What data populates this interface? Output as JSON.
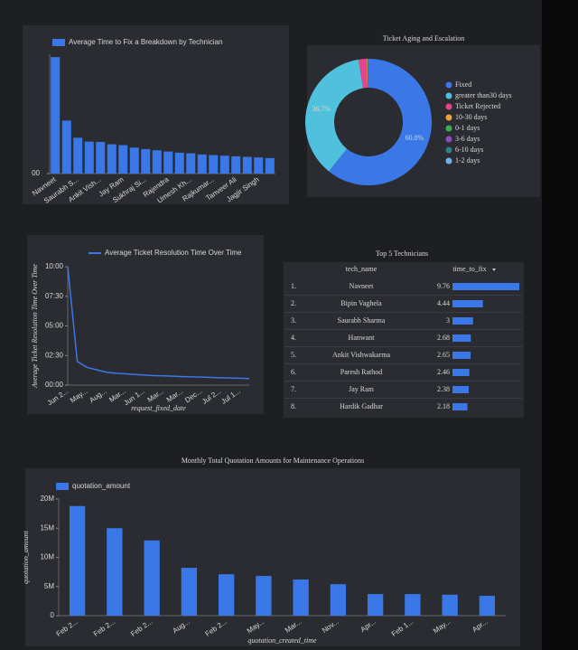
{
  "chart_data": [
    {
      "type": "bar",
      "legend": "top",
      "categories": [
        "Navneet",
        null,
        "Saurabh S...",
        null,
        "Ankit Vish...",
        null,
        "Jay Ram",
        null,
        "Sukhraj Si...",
        null,
        "Rajendra",
        null,
        "Umesh Kh...",
        null,
        "Rajkumar...",
        null,
        "Tanveer Ali",
        null,
        "Jagjir Singh",
        null
      ],
      "series": [
        {
          "name": "Average Time to Fix a Breakdown by Technician",
          "color": "#3b78e7",
          "values": [
            9.76,
            4.44,
            3,
            2.68,
            2.65,
            2.46,
            2.38,
            2.18,
            2.05,
            1.95,
            1.85,
            1.75,
            1.7,
            1.6,
            1.55,
            1.5,
            1.45,
            1.4,
            1.35,
            1.3
          ]
        }
      ],
      "ylim": [
        0,
        10
      ],
      "yticks": [
        {
          "value": 0,
          "label": "00"
        }
      ]
    },
    {
      "type": "pie",
      "title": "Ticket Aging and Escalation",
      "donut": true,
      "legend": "right",
      "categories": [
        "Fixed",
        "greater than30 days",
        "Ticket Rejected",
        "10-30 days",
        "0-1 days",
        "3-6 days",
        "6-10 days",
        "1-2 days"
      ],
      "values": [
        60.8,
        36.7,
        2.0,
        0.2,
        0.1,
        0.1,
        0.05,
        0.05
      ],
      "value_labels": [
        "60.8%",
        "36.7%",
        null,
        null,
        null,
        null,
        null,
        null
      ],
      "colors": [
        "#3b78e7",
        "#4fc1dc",
        "#e8438f",
        "#f2a33a",
        "#3cae52",
        "#8e4cc4",
        "#2e7f86",
        "#6fb2f0"
      ]
    },
    {
      "type": "line",
      "legend": "top",
      "categories": [
        "Jun 2...",
        null,
        "May...",
        null,
        "Aug...",
        null,
        "Mar...",
        null,
        "Jun 1...",
        null,
        "Mar...",
        null,
        "Mar...",
        null,
        "Dec...",
        null,
        "Jul 2...",
        null,
        "Jul 1...",
        null
      ],
      "series": [
        {
          "name": "Average Ticket Resolution Time Over Time",
          "color": "#3b78e7",
          "values": [
            10,
            2.0,
            1.5,
            1.3,
            1.1,
            1.0,
            0.95,
            0.9,
            0.85,
            0.8,
            0.78,
            0.75,
            0.72,
            0.7,
            0.68,
            0.65,
            0.62,
            0.6,
            0.58,
            0.55
          ]
        }
      ],
      "ylim": [
        0,
        10
      ],
      "yticks": [
        {
          "value": 0,
          "label": "00:00"
        },
        {
          "value": 2.5,
          "label": "02:30"
        },
        {
          "value": 5,
          "label": "05:00"
        },
        {
          "value": 7.5,
          "label": "07:30"
        },
        {
          "value": 10,
          "label": "10:00"
        }
      ],
      "y_label": "Average Ticket Resolution Time Over Time",
      "x_label": "request_fixed_date"
    },
    {
      "type": "bar",
      "title": "Monthly Total Quotation Amounts for Maintenance Operations",
      "legend": "top",
      "categories": [
        "Feb 2...",
        "Feb 2...",
        "Feb 2...",
        "Aug...",
        "Feb 2...",
        "May...",
        "Mar...",
        "Nov...",
        "Apr...",
        "Feb 1...",
        "May...",
        "Apr..."
      ],
      "series": [
        {
          "name": "quotation_amount",
          "color": "#3b78e7",
          "values": [
            18800000,
            15000000,
            12900000,
            8200000,
            7100000,
            6800000,
            6200000,
            5400000,
            3700000,
            3700000,
            3600000,
            3400000
          ]
        }
      ],
      "ylim": [
        0,
        20000000
      ],
      "yticks": [
        0,
        {
          "value": 5000000,
          "label": "5M"
        },
        {
          "value": 10000000,
          "label": "10M"
        },
        {
          "value": 15000000,
          "label": "15M"
        },
        {
          "value": 20000000,
          "label": "20M"
        }
      ],
      "y_label": "quotation_amount",
      "x_label": "quotation_created_time"
    }
  ],
  "table": {
    "title": "Top 5 Technicians",
    "columns": [
      "tech_name",
      "time_to_fix"
    ],
    "row_numbers": [
      "1.",
      "2.",
      "3.",
      "4.",
      "5.",
      "6.",
      "7.",
      "8."
    ],
    "rows": [
      [
        "Navneet",
        9.76
      ],
      [
        "Bipin Vaghela",
        4.44
      ],
      [
        "Saurabh Sharma",
        3
      ],
      [
        "Hanwant",
        2.68
      ],
      [
        "Ankit Vishwakarma",
        2.65
      ],
      [
        "Paresh Rathod",
        2.46
      ],
      [
        "Jay Ram",
        2.38
      ],
      [
        "Hardik Gadhar",
        2.18
      ]
    ],
    "bar_color": "#3b78e7"
  }
}
